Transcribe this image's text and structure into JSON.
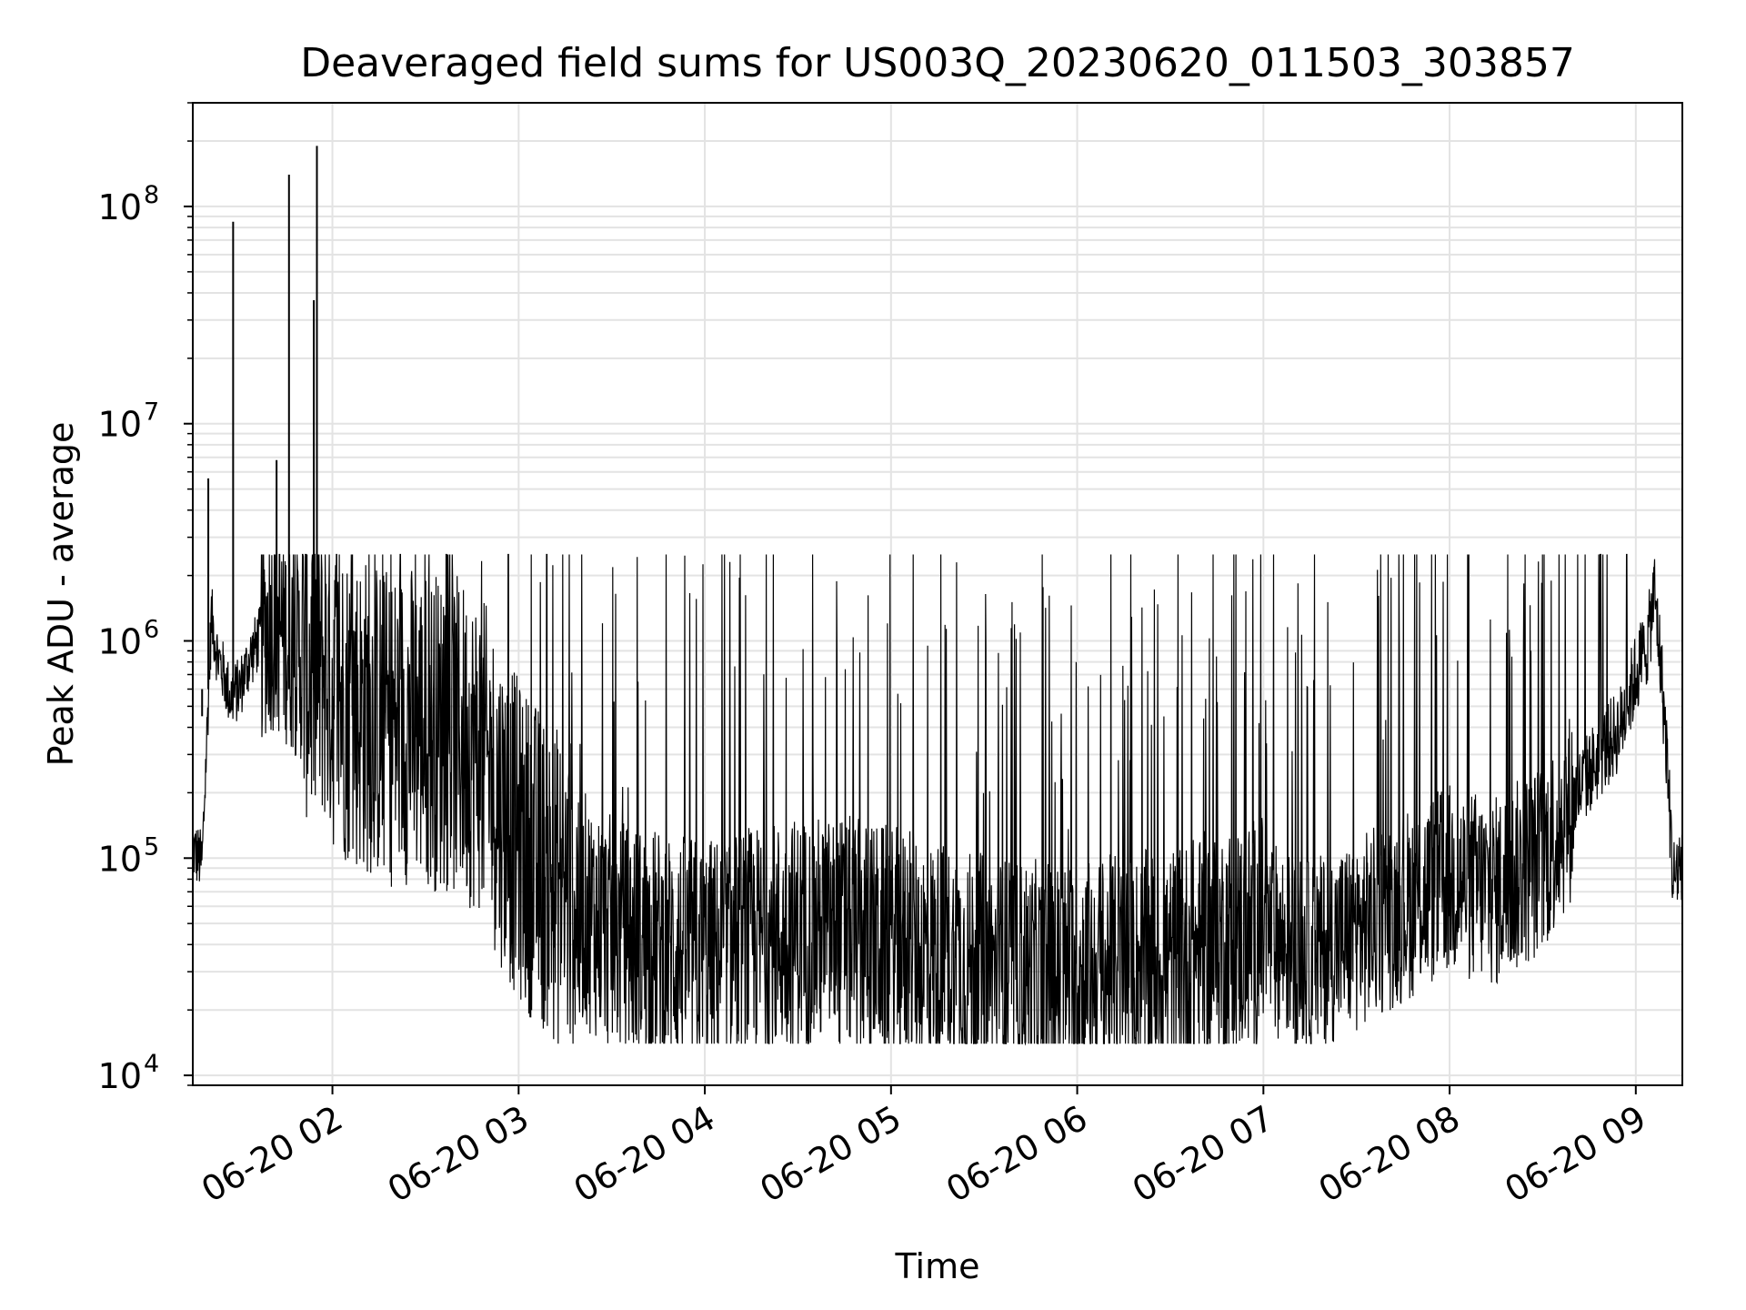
{
  "chart_data": {
    "type": "line",
    "title": "Deaveraged field sums for US003Q_20230620_011503_303857",
    "xlabel": "Time",
    "ylabel": "Peak ADU - average",
    "xscale": "time",
    "yscale": "log",
    "xlim": [
      "06-20 01:15",
      "06-20 09:15"
    ],
    "ylim": [
      9000,
      300000000
    ],
    "grid": true,
    "x_ticks": [
      "06-20 02",
      "06-20 03",
      "06-20 04",
      "06-20 05",
      "06-20 06",
      "06-20 07",
      "06-20 08",
      "06-20 09"
    ],
    "y_ticks": [
      {
        "value": 10000,
        "base": "10",
        "exp": "4"
      },
      {
        "value": 100000,
        "base": "10",
        "exp": "5"
      },
      {
        "value": 1000000,
        "base": "10",
        "exp": "6"
      },
      {
        "value": 10000000,
        "base": "10",
        "exp": "7"
      },
      {
        "value": 100000000,
        "base": "10",
        "exp": "8"
      }
    ],
    "line_color": "#000000",
    "series": [
      {
        "x": [
          "06-20 01:15",
          "06-20 01:18",
          "06-20 01:21",
          "06-20 01:23",
          "06-20 01:25",
          "06-20 01:27",
          "06-20 01:30",
          "06-20 01:33",
          "06-20 01:36",
          "06-20 01:40",
          "06-20 01:44",
          "06-20 01:48",
          "06-20 01:52",
          "06-20 01:54",
          "06-20 01:57",
          "06-20 02:00",
          "06-20 02:06",
          "06-20 02:12",
          "06-20 02:18",
          "06-20 02:24",
          "06-20 02:30",
          "06-20 02:36",
          "06-20 02:42",
          "06-20 02:48",
          "06-20 02:54",
          "06-20 03:00",
          "06-20 03:10",
          "06-20 03:20",
          "06-20 03:30",
          "06-20 03:40",
          "06-20 03:50",
          "06-20 04:00",
          "06-20 04:15",
          "06-20 04:30",
          "06-20 04:45",
          "06-20 05:00",
          "06-20 05:15",
          "06-20 05:30",
          "06-20 05:45",
          "06-20 06:00",
          "06-20 06:15",
          "06-20 06:30",
          "06-20 06:45",
          "06-20 07:00",
          "06-20 07:15",
          "06-20 07:30",
          "06-20 07:45",
          "06-20 08:00",
          "06-20 08:15",
          "06-20 08:30",
          "06-20 08:45",
          "06-20 08:55",
          "06-20 09:00",
          "06-20 09:04",
          "06-20 09:06",
          "06-20 09:08",
          "06-20 09:10",
          "06-20 09:12",
          "06-20 09:15"
        ],
        "y": [
          110000,
          95000,
          1300000,
          850000,
          700000,
          550000,
          600000,
          800000,
          1000000,
          1200000,
          1100000,
          900000,
          800000,
          700000,
          800000,
          600000,
          500000,
          450000,
          400000,
          420000,
          400000,
          380000,
          350000,
          300000,
          180000,
          120000,
          80000,
          60000,
          45000,
          40000,
          38000,
          35000,
          40000,
          45000,
          45000,
          40000,
          35000,
          30000,
          28000,
          28000,
          30000,
          32000,
          40000,
          45000,
          35000,
          45000,
          60000,
          80000,
          70000,
          100000,
          250000,
          400000,
          700000,
          1000000,
          1700000,
          800000,
          300000,
          80000,
          100000
        ]
      }
    ],
    "spikes": [
      {
        "x": "06-20 01:18",
        "y": 450000
      },
      {
        "x": "06-20 01:20",
        "y": 5600000
      },
      {
        "x": "06-20 01:28",
        "y": 85000000
      },
      {
        "x": "06-20 01:42",
        "y": 6800000
      },
      {
        "x": "06-20 01:46",
        "y": 140000000
      },
      {
        "x": "06-20 01:54",
        "y": 37000000
      },
      {
        "x": "06-20 01:55",
        "y": 190000000
      }
    ]
  }
}
